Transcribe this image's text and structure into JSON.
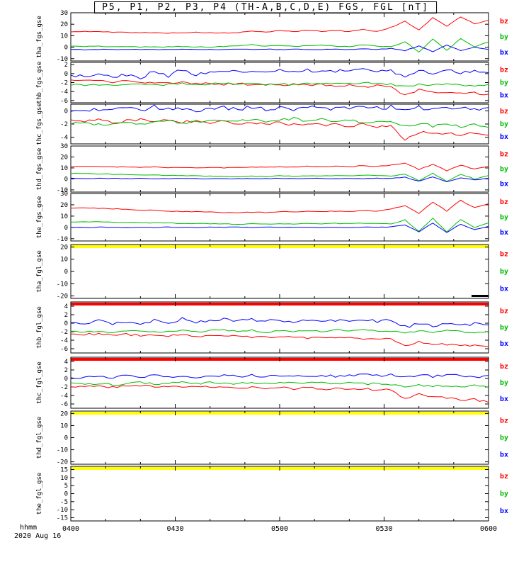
{
  "title": "P5, P1, P2, P3, P4 (TH-A,B,C,D,E) FGS, FGL [nT]",
  "colors": {
    "bz": "#ff0000",
    "by": "#00bb00",
    "bx": "#0000ff",
    "flag_yellow": "#ffff00",
    "flag_red": "#ff0000"
  },
  "x_axis": {
    "label": "hhmm",
    "date": "2020 Aug 16",
    "ticks": [
      "0400",
      "0430",
      "0500",
      "0530",
      "0600"
    ],
    "minutes": [
      0,
      30,
      60,
      90,
      120
    ],
    "range_minutes": [
      0,
      120
    ]
  },
  "chart_data": [
    {
      "type": "line",
      "name": "tha_fgs_gse",
      "ylim": [
        -12,
        30
      ],
      "yticks": [
        30,
        20,
        10,
        0,
        -10
      ],
      "legend": [
        "bz",
        "by",
        "bx"
      ],
      "flag_bar": null,
      "end_dash": false,
      "series": [
        {
          "name": "bz",
          "color": "#ff0000",
          "jitter": 0.3,
          "values": [
            13.2,
            13.8,
            13.5,
            13.1,
            12.9,
            12.7,
            12.5,
            12.4,
            12.6,
            12.9,
            12.5,
            12.3,
            12.7,
            13.9,
            13.1,
            14.6,
            13.5,
            14.9,
            13.8,
            14.6,
            13.7,
            15.6,
            13.6,
            17.2,
            22.5,
            14.8,
            25.5,
            18.5,
            26.5,
            20.5,
            23.5
          ]
        },
        {
          "name": "by",
          "color": "#00bb00",
          "jitter": 0.3,
          "values": [
            1.0,
            0.6,
            0.9,
            0.4,
            0.6,
            0.2,
            0.1,
            0.4,
            0.6,
            0.3,
            0.1,
            0.6,
            1.1,
            2.1,
            0.9,
            1.6,
            0.6,
            1.2,
            2.0,
            0.9,
            0.5,
            2.1,
            0.8,
            0.2,
            4.5,
            -4.0,
            7.0,
            -3.0,
            7.5,
            0.5,
            4.5
          ]
        },
        {
          "name": "bx",
          "color": "#0000ff",
          "jitter": 0.25,
          "values": [
            -2.0,
            -2.2,
            -1.9,
            -2.1,
            -2.0,
            -1.9,
            -2.1,
            -2.2,
            -2.0,
            -1.8,
            -2.0,
            -2.1,
            -1.9,
            -2.0,
            -1.6,
            -2.0,
            -1.8,
            -2.2,
            -2.0,
            -1.9,
            -2.1,
            -1.6,
            -2.0,
            -1.1,
            -3.0,
            1.0,
            -4.0,
            2.0,
            -3.0,
            0.0,
            -2.0
          ]
        }
      ]
    },
    {
      "type": "line",
      "name": "thb_fgs_gse",
      "ylim": [
        -6.5,
        2.5
      ],
      "yticks": [
        2,
        0,
        -2,
        -4,
        -6
      ],
      "legend": [
        "bz",
        "by",
        "bx"
      ],
      "flag_bar": null,
      "end_dash": false,
      "series": [
        {
          "name": "bz",
          "color": "#ff0000",
          "jitter": 0.25,
          "values": [
            -1.5,
            -1.7,
            -1.6,
            -1.9,
            -1.7,
            -2.1,
            -1.9,
            -2.2,
            -2.0,
            -2.3,
            -2.1,
            -2.4,
            -2.2,
            -2.5,
            -2.3,
            -2.6,
            -2.4,
            -2.7,
            -2.5,
            -2.8,
            -2.6,
            -2.9,
            -2.7,
            -3.0,
            -4.8,
            -3.6,
            -4.0,
            -4.2,
            -4.5,
            -4.3,
            -4.6
          ]
        },
        {
          "name": "by",
          "color": "#00bb00",
          "jitter": 0.2,
          "values": [
            -2.5,
            -2.6,
            -2.4,
            -2.7,
            -2.5,
            -2.3,
            -2.6,
            -2.4,
            -2.2,
            -2.5,
            -2.3,
            -2.1,
            -2.4,
            -2.2,
            -2.6,
            -2.3,
            -2.5,
            -2.2,
            -2.4,
            -2.1,
            -2.3,
            -2.0,
            -2.2,
            -2.4,
            -2.9,
            -2.4,
            -2.6,
            -2.3,
            -2.5,
            -2.7,
            -2.4
          ]
        },
        {
          "name": "bx",
          "color": "#0000ff",
          "jitter": 0.35,
          "values": [
            -0.3,
            -0.6,
            0.0,
            -0.8,
            -0.2,
            -1.0,
            0.5,
            -0.5,
            0.9,
            -0.3,
            0.2,
            0.8,
            0.5,
            0.7,
            0.4,
            0.6,
            0.3,
            0.7,
            0.4,
            0.6,
            0.5,
            0.8,
            0.4,
            0.6,
            -0.8,
            0.5,
            0.2,
            0.6,
            0.3,
            0.5,
            0.2
          ]
        }
      ]
    },
    {
      "type": "line",
      "name": "thc_fgs_gse",
      "ylim": [
        -5,
        1
      ],
      "yticks": [
        0,
        -2,
        -4
      ],
      "legend": [
        "bz",
        "by",
        "bx"
      ],
      "flag_bar": null,
      "end_dash": false,
      "series": [
        {
          "name": "bz",
          "color": "#ff0000",
          "jitter": 0.2,
          "values": [
            -1.5,
            -1.6,
            -1.4,
            -1.8,
            -1.5,
            -1.3,
            -1.6,
            -1.4,
            -1.7,
            -1.5,
            -1.8,
            -1.6,
            -1.9,
            -1.7,
            -2.0,
            -1.8,
            -2.1,
            -1.9,
            -2.2,
            -2.0,
            -2.3,
            -2.1,
            -2.4,
            -2.2,
            -4.3,
            -3.2,
            -3.5,
            -3.3,
            -3.6,
            -3.4,
            -3.7
          ]
        },
        {
          "name": "by",
          "color": "#00bb00",
          "jitter": 0.2,
          "values": [
            -2.0,
            -1.8,
            -2.1,
            -1.9,
            -1.6,
            -2.0,
            -1.7,
            -1.5,
            -1.8,
            -1.6,
            -1.4,
            -1.7,
            -1.5,
            -1.3,
            -1.6,
            -1.4,
            -1.2,
            -1.5,
            -1.3,
            -1.6,
            -1.4,
            -1.7,
            -1.5,
            -1.8,
            -2.3,
            -1.9,
            -2.3,
            -2.0,
            -2.4,
            -2.1,
            -2.5
          ]
        },
        {
          "name": "bx",
          "color": "#0000ff",
          "jitter": 0.3,
          "values": [
            0.2,
            -0.1,
            0.3,
            0.0,
            0.5,
            0.1,
            0.6,
            0.2,
            0.4,
            0.0,
            0.3,
            0.5,
            0.2,
            0.6,
            0.3,
            0.5,
            0.2,
            0.4,
            0.6,
            0.3,
            0.5,
            0.7,
            0.4,
            0.6,
            0.1,
            0.5,
            0.3,
            0.6,
            0.4,
            0.2,
            0.5
          ]
        }
      ]
    },
    {
      "type": "line",
      "name": "thd_fgs_gse",
      "ylim": [
        -12,
        30
      ],
      "yticks": [
        30,
        20,
        10,
        0,
        -10
      ],
      "legend": [
        "bz",
        "by",
        "bx"
      ],
      "flag_bar": null,
      "end_dash": false,
      "series": [
        {
          "name": "bz",
          "color": "#ff0000",
          "jitter": 0.3,
          "values": [
            11.0,
            11.4,
            11.1,
            10.8,
            11.0,
            10.6,
            10.8,
            10.4,
            10.6,
            10.2,
            10.5,
            10.1,
            10.3,
            11.0,
            10.6,
            11.2,
            10.8,
            11.5,
            11.0,
            11.8,
            11.2,
            12.0,
            11.4,
            12.5,
            14.5,
            8.5,
            13.5,
            7.5,
            12.5,
            9.0,
            11.5
          ]
        },
        {
          "name": "by",
          "color": "#00bb00",
          "jitter": 0.3,
          "values": [
            5.0,
            4.8,
            4.5,
            4.2,
            4.0,
            3.8,
            3.5,
            3.2,
            3.0,
            2.8,
            2.5,
            2.2,
            2.0,
            2.5,
            2.2,
            2.8,
            2.4,
            3.0,
            2.6,
            3.2,
            2.8,
            3.4,
            3.0,
            2.5,
            4.5,
            -1.5,
            5.0,
            -2.0,
            4.0,
            0.0,
            3.0
          ]
        },
        {
          "name": "bx",
          "color": "#0000ff",
          "jitter": 0.25,
          "values": [
            0.5,
            0.3,
            0.6,
            0.4,
            0.2,
            0.5,
            0.3,
            0.1,
            0.4,
            0.2,
            0.0,
            0.3,
            0.1,
            0.4,
            0.2,
            0.5,
            0.3,
            0.6,
            0.4,
            0.2,
            0.5,
            0.3,
            0.6,
            0.4,
            1.5,
            -2.0,
            2.0,
            -2.5,
            1.0,
            -1.0,
            0.5
          ]
        }
      ]
    },
    {
      "type": "line",
      "name": "the_fgs_gse",
      "ylim": [
        -12,
        30
      ],
      "yticks": [
        30,
        20,
        10,
        0,
        -10
      ],
      "legend": [
        "bz",
        "by",
        "bx"
      ],
      "flag_bar": null,
      "end_dash": false,
      "series": [
        {
          "name": "bz",
          "color": "#ff0000",
          "jitter": 0.3,
          "values": [
            17.0,
            17.4,
            17.0,
            16.5,
            16.0,
            15.5,
            15.0,
            14.5,
            14.0,
            13.8,
            13.5,
            13.2,
            13.0,
            13.5,
            13.2,
            14.0,
            13.6,
            14.2,
            13.8,
            14.5,
            14.0,
            15.0,
            14.5,
            16.0,
            19.5,
            12.5,
            22.5,
            14.5,
            24.0,
            17.5,
            21.0
          ]
        },
        {
          "name": "by",
          "color": "#00bb00",
          "jitter": 0.3,
          "values": [
            5.0,
            4.8,
            5.0,
            4.6,
            4.4,
            4.2,
            4.0,
            3.8,
            3.6,
            3.4,
            3.2,
            3.0,
            2.8,
            3.2,
            3.0,
            3.4,
            3.1,
            3.5,
            3.2,
            3.6,
            3.3,
            3.8,
            3.4,
            3.0,
            6.5,
            -3.5,
            8.0,
            -4.0,
            7.0,
            0.0,
            4.0
          ]
        },
        {
          "name": "bx",
          "color": "#0000ff",
          "jitter": 0.25,
          "values": [
            0.0,
            -0.2,
            0.2,
            0.0,
            -0.3,
            0.1,
            -0.1,
            0.3,
            0.0,
            -0.2,
            0.2,
            0.0,
            0.3,
            -0.1,
            0.2,
            0.0,
            0.3,
            0.1,
            -0.2,
            0.2,
            0.0,
            0.4,
            0.1,
            0.5,
            2.0,
            -4.0,
            4.0,
            -4.5,
            3.0,
            -2.0,
            1.0
          ]
        }
      ]
    },
    {
      "type": "line",
      "name": "tha_fgl_gse",
      "ylim": [
        -22,
        22
      ],
      "yticks": [
        20,
        10,
        0,
        -10,
        -20
      ],
      "legend": [
        "bz",
        "by",
        "bx"
      ],
      "flag_bar": "yellow",
      "end_dash": true,
      "series": []
    },
    {
      "type": "line",
      "name": "thb_fgl_gse",
      "ylim": [
        -7,
        5
      ],
      "yticks": [
        4,
        2,
        0,
        -2,
        -4,
        -6
      ],
      "legend": [
        "bz",
        "by",
        "bx"
      ],
      "flag_bar": "red",
      "end_dash": false,
      "series": [
        {
          "name": "bz",
          "color": "#ff0000",
          "jitter": 0.25,
          "values": [
            -2.4,
            -2.6,
            -2.5,
            -2.8,
            -2.6,
            -2.9,
            -2.7,
            -3.0,
            -2.8,
            -3.1,
            -2.9,
            -3.2,
            -3.0,
            -3.3,
            -3.1,
            -3.4,
            -3.2,
            -3.5,
            -3.3,
            -3.6,
            -3.4,
            -3.7,
            -3.5,
            -3.8,
            -5.4,
            -4.4,
            -4.8,
            -5.0,
            -5.3,
            -5.1,
            -5.5
          ]
        },
        {
          "name": "by",
          "color": "#00bb00",
          "jitter": 0.2,
          "values": [
            -1.8,
            -2.0,
            -1.9,
            -2.1,
            -2.0,
            -1.8,
            -2.1,
            -1.9,
            -1.7,
            -2.0,
            -1.8,
            -1.6,
            -1.9,
            -1.7,
            -2.1,
            -1.8,
            -2.0,
            -1.7,
            -1.9,
            -1.6,
            -1.8,
            -1.5,
            -1.7,
            -1.9,
            -2.4,
            -1.9,
            -2.1,
            -1.8,
            -2.0,
            -2.2,
            -1.9
          ]
        },
        {
          "name": "bx",
          "color": "#0000ff",
          "jitter": 0.35,
          "values": [
            0.3,
            0.0,
            0.5,
            -0.2,
            0.4,
            -0.5,
            0.8,
            0.1,
            1.0,
            0.2,
            0.5,
            0.9,
            0.6,
            0.8,
            0.5,
            0.7,
            0.4,
            0.8,
            0.5,
            0.7,
            0.6,
            0.9,
            0.5,
            0.7,
            -0.8,
            -0.3,
            -0.6,
            -0.2,
            -0.5,
            -0.1,
            -0.4
          ]
        }
      ]
    },
    {
      "type": "line",
      "name": "thc_fgl_gse",
      "ylim": [
        -7,
        5
      ],
      "yticks": [
        4,
        2,
        0,
        -2,
        -4,
        -6
      ],
      "legend": [
        "bz",
        "by",
        "bx"
      ],
      "flag_bar": "red",
      "end_dash": false,
      "series": [
        {
          "name": "bz",
          "color": "#ff0000",
          "jitter": 0.25,
          "values": [
            -1.8,
            -1.9,
            -1.7,
            -2.1,
            -1.8,
            -1.6,
            -1.9,
            -1.7,
            -2.0,
            -1.8,
            -2.1,
            -1.9,
            -2.2,
            -2.0,
            -2.3,
            -2.1,
            -2.4,
            -2.2,
            -2.5,
            -2.3,
            -2.6,
            -2.4,
            -2.7,
            -2.5,
            -4.8,
            -3.7,
            -4.2,
            -4.5,
            -5.2,
            -4.9,
            -5.6
          ]
        },
        {
          "name": "by",
          "color": "#00bb00",
          "jitter": 0.25,
          "values": [
            -1.2,
            -1.4,
            -1.1,
            -1.5,
            -1.2,
            -1.0,
            -1.3,
            -1.1,
            -0.9,
            -1.2,
            -1.0,
            -1.3,
            -1.1,
            -0.9,
            -1.2,
            -1.0,
            -0.8,
            -1.1,
            -0.9,
            -1.2,
            -1.0,
            -1.3,
            -1.1,
            -1.4,
            -1.9,
            -1.5,
            -1.8,
            -1.6,
            -2.0,
            -1.7,
            -2.1
          ]
        },
        {
          "name": "bx",
          "color": "#0000ff",
          "jitter": 0.3,
          "values": [
            0.4,
            0.1,
            0.5,
            0.2,
            0.7,
            0.3,
            0.8,
            0.4,
            0.6,
            0.2,
            0.5,
            0.7,
            0.4,
            0.8,
            0.5,
            0.7,
            0.4,
            0.6,
            0.8,
            0.5,
            0.7,
            0.9,
            0.6,
            0.8,
            0.3,
            0.7,
            0.5,
            0.8,
            0.6,
            0.4,
            0.7
          ]
        }
      ]
    },
    {
      "type": "line",
      "name": "thd_fgl_gse",
      "ylim": [
        -22,
        22
      ],
      "yticks": [
        20,
        10,
        0,
        -10,
        -20
      ],
      "legend": [
        "bz",
        "by",
        "bx"
      ],
      "flag_bar": "yellow",
      "end_dash": false,
      "series": []
    },
    {
      "type": "line",
      "name": "the_fgl_gse",
      "ylim": [
        -17,
        17
      ],
      "yticks": [
        15,
        10,
        5,
        0,
        -5,
        -10,
        -15
      ],
      "legend": [
        "bz",
        "by",
        "bx"
      ],
      "flag_bar": "yellow",
      "end_dash": false,
      "series": []
    }
  ]
}
